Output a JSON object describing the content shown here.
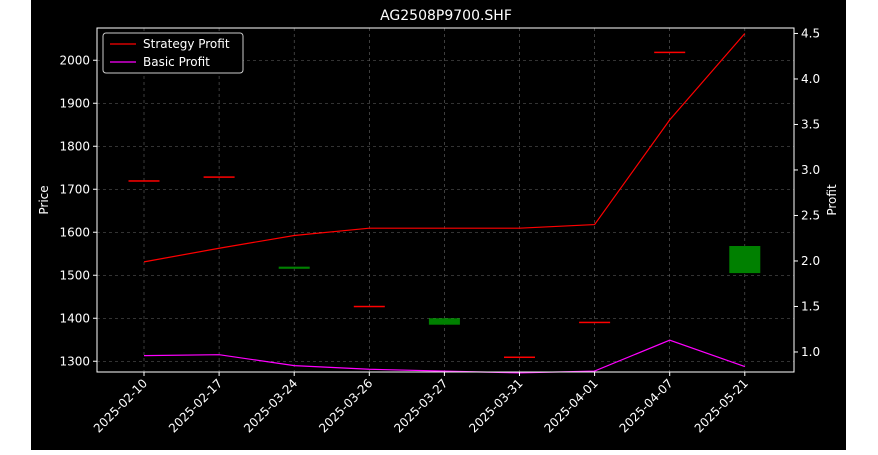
{
  "chart_data": {
    "type": "candlestick_with_lines",
    "title": "AG2508P9700.SHF",
    "xlabel": "",
    "ylabel_left": "Price",
    "ylabel_right": "Profit",
    "categories": [
      "2025-02-10",
      "2025-02-17",
      "2025-03-24",
      "2025-03-26",
      "2025-03-27",
      "2025-03-31",
      "2025-04-01",
      "2025-04-07",
      "2025-05-21"
    ],
    "ylim_left": [
      1275,
      2075
    ],
    "yticks_left": [
      1300,
      1400,
      1500,
      1600,
      1700,
      1800,
      1900,
      2000
    ],
    "ylim_right": [
      0.78,
      4.56
    ],
    "yticks_right": [
      1.0,
      1.5,
      2.0,
      2.5,
      3.0,
      3.5,
      4.0,
      4.5
    ],
    "ytick_labels_left": [
      "1300",
      "1400",
      "1500",
      "1600",
      "1700",
      "1800",
      "1900",
      "2000"
    ],
    "ytick_labels_right": [
      "1.0",
      "1.5",
      "2.0",
      "2.5",
      "3.0",
      "3.5",
      "4.0",
      "4.5"
    ],
    "grid": true,
    "legend_position": "upper-left",
    "candles": [
      {
        "open": 1721,
        "close": 1721,
        "color": "#ff0000"
      },
      {
        "open": 1730,
        "close": 1730,
        "color": "#ff0000"
      },
      {
        "open": 1520,
        "close": 1515,
        "color": "#008000"
      },
      {
        "open": 1429,
        "close": 1429,
        "color": "#ff0000"
      },
      {
        "open": 1400,
        "close": 1385,
        "color": "#008000"
      },
      {
        "open": 1311,
        "close": 1311,
        "color": "#ff0000"
      },
      {
        "open": 1392,
        "close": 1392,
        "color": "#ff0000"
      },
      {
        "open": 2020,
        "close": 2020,
        "color": "#ff0000"
      },
      {
        "open": 1568,
        "close": 1505,
        "color": "#008000"
      }
    ],
    "series": [
      {
        "name": "Strategy Profit",
        "axis": "right",
        "color": "#ff0000",
        "values": [
          1.99,
          2.14,
          2.28,
          2.36,
          2.36,
          2.36,
          2.4,
          3.55,
          4.5
        ]
      },
      {
        "name": "Basic Profit",
        "axis": "right",
        "color": "#ff00ff",
        "values": [
          0.96,
          0.97,
          0.85,
          0.81,
          0.79,
          0.77,
          0.79,
          1.13,
          0.84
        ]
      }
    ]
  }
}
